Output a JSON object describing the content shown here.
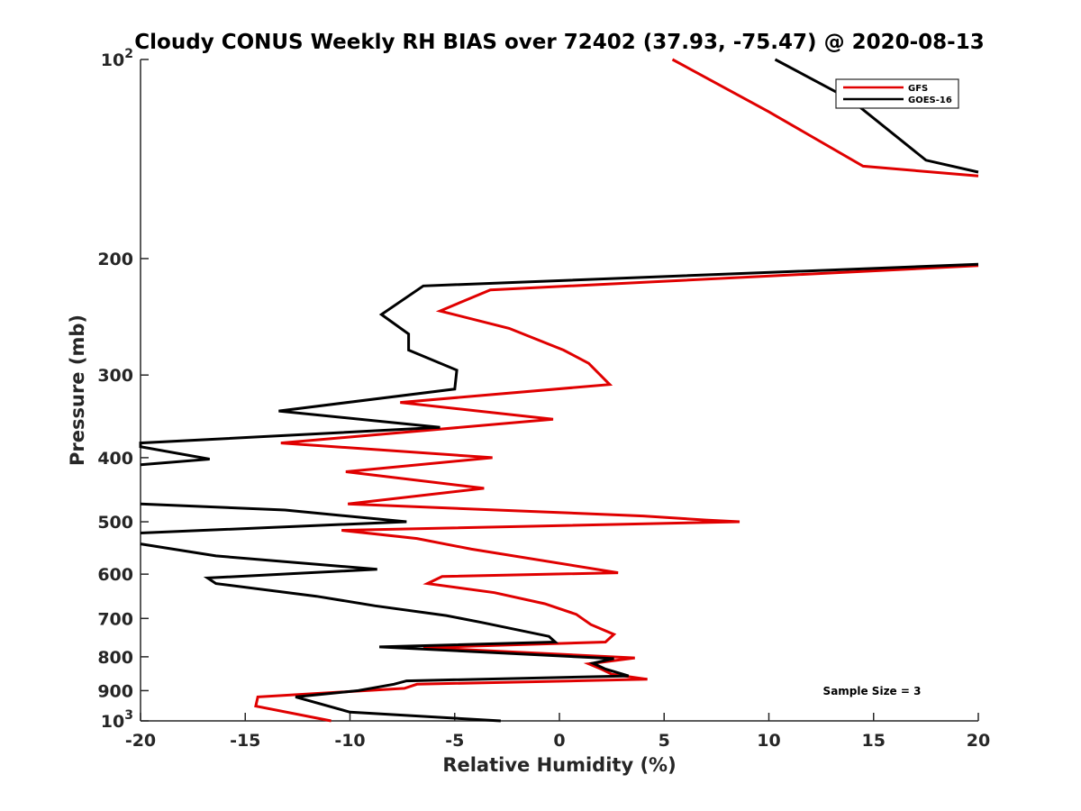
{
  "chart_data": {
    "type": "line",
    "title": "Cloudy CONUS Weekly RH BIAS over 72402 (37.93, -75.47) @ 2020-08-13",
    "xlabel": "Relative Humidity (%)",
    "ylabel": "Pressure (mb)",
    "xlim": [
      -20,
      20
    ],
    "ylim": [
      100,
      1000
    ],
    "y_scale": "log",
    "y_reversed": true,
    "grid": false,
    "x_ticks": [
      "-20",
      "-15",
      "-10",
      "-5",
      "0",
      "5",
      "10",
      "15",
      "20"
    ],
    "y_ticks": [
      {
        "value": 100,
        "label": "10",
        "sup": "2"
      },
      {
        "value": 200,
        "label": "200",
        "sup": ""
      },
      {
        "value": 300,
        "label": "300",
        "sup": ""
      },
      {
        "value": 400,
        "label": "400",
        "sup": ""
      },
      {
        "value": 500,
        "label": "500",
        "sup": ""
      },
      {
        "value": 600,
        "label": "600",
        "sup": ""
      },
      {
        "value": 700,
        "label": "700",
        "sup": ""
      },
      {
        "value": 800,
        "label": "800",
        "sup": ""
      },
      {
        "value": 900,
        "label": "900",
        "sup": ""
      },
      {
        "value": 1000,
        "label": "10",
        "sup": "3"
      }
    ],
    "legend_position": "top-right",
    "series": [
      {
        "name": "GFS",
        "color": "#e00000",
        "x": [
          5.4,
          10,
          14.5,
          20,
          null,
          20,
          -3.3,
          -5.7,
          -2.4,
          0.2,
          1.4,
          2.4,
          -7.6,
          -0.3,
          -13.3,
          -3.2,
          -10.2,
          -3.6,
          -10.1,
          4,
          7,
          8.6,
          -10.4,
          -6.8,
          -4.2,
          2.8,
          -5.6,
          -6.3,
          -3.1,
          -0.7,
          0.8,
          1.5,
          2.6,
          2.2,
          -6.5,
          3.6,
          1.4,
          2,
          2.5,
          4.2,
          -6.8,
          -7.4,
          -14.4,
          -14.5,
          -10.9
        ],
        "y": [
          100,
          120,
          145,
          150,
          null,
          205,
          223,
          240,
          255,
          275,
          288,
          310,
          330,
          350,
          380,
          400,
          420,
          445,
          470,
          490,
          497,
          500,
          515,
          530,
          550,
          597,
          605,
          620,
          640,
          665,
          690,
          715,
          740,
          760,
          775,
          803,
          820,
          835,
          850,
          865,
          880,
          893,
          920,
          950,
          1000
        ]
      },
      {
        "name": "GOES-16",
        "color": "#000000",
        "x": [
          10.3,
          13.9,
          17.5,
          20,
          null,
          20,
          -6.5,
          -8.5,
          -7.2,
          -7.2,
          -4.9,
          -5,
          -13.4,
          -5.7,
          -20,
          -20,
          -16.7,
          -20,
          null,
          -20,
          -13.1,
          -7.3,
          -20,
          null,
          -20,
          -16.4,
          -8.7,
          -16.8,
          -16.4,
          -11.6,
          -8.8,
          -5.4,
          -3.7,
          -0.5,
          -0.2,
          -8.6,
          2.6,
          1.6,
          2.2,
          3.3,
          -7.3,
          -7.9,
          -9.6,
          -12.6,
          -10,
          -2.8
        ],
        "y": [
          100,
          115,
          142,
          148,
          null,
          204,
          220,
          243,
          260,
          275,
          295,
          315,
          340,
          360,
          380,
          385,
          402,
          410,
          null,
          470,
          480,
          500,
          520,
          null,
          540,
          563,
          590,
          608,
          620,
          648,
          670,
          693,
          710,
          745,
          760,
          773,
          805,
          818,
          835,
          855,
          870,
          880,
          900,
          920,
          970,
          1000
        ]
      }
    ],
    "annotations": [
      "Sample Size = 3"
    ]
  }
}
